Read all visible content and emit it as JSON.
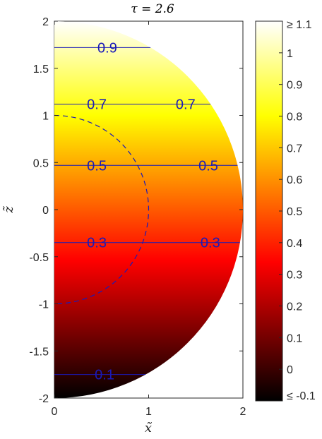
{
  "chart_data": {
    "type": "heatmap",
    "title": "τ  = 2.6",
    "xlabel": "x̃",
    "ylabel": "z̃",
    "xlim": [
      0,
      2
    ],
    "ylim": [
      -2,
      2
    ],
    "x_ticks": [
      "0",
      "1",
      "2"
    ],
    "y_ticks": [
      "-2",
      "-1.5",
      "-1",
      "-0.5",
      "0",
      "0.5",
      "1",
      "1.5",
      "2"
    ],
    "domain": "half-disk of radius 2 centered at origin (x ≥ 0)",
    "colormap": "hot",
    "colorbar": {
      "range": [
        -0.1,
        1.1
      ],
      "tick_labels": [
        "≤ -0.1",
        "0",
        "0.1",
        "0.2",
        "0.3",
        "0.4",
        "0.5",
        "0.6",
        "0.7",
        "0.8",
        "0.9",
        "1",
        "≥ 1.1"
      ]
    },
    "field": "approximately linear in z: value ≈ 0.5 + 0.25·z",
    "contours": [
      {
        "level": 0.1,
        "z": -1.75,
        "labels": [
          "0.1"
        ]
      },
      {
        "level": 0.3,
        "z": -0.35,
        "labels": [
          "0.3",
          "0.3"
        ]
      },
      {
        "level": 0.5,
        "z": 0.47,
        "labels": [
          "0.5",
          "0.5"
        ]
      },
      {
        "level": 0.7,
        "z": 1.12,
        "labels": [
          "0.7",
          "0.7"
        ]
      },
      {
        "level": 0.9,
        "z": 1.72,
        "labels": [
          "0.9"
        ]
      }
    ],
    "dashed_circle": {
      "radius": 1
    },
    "contour_color": "#1a1ab8",
    "grid": false
  }
}
